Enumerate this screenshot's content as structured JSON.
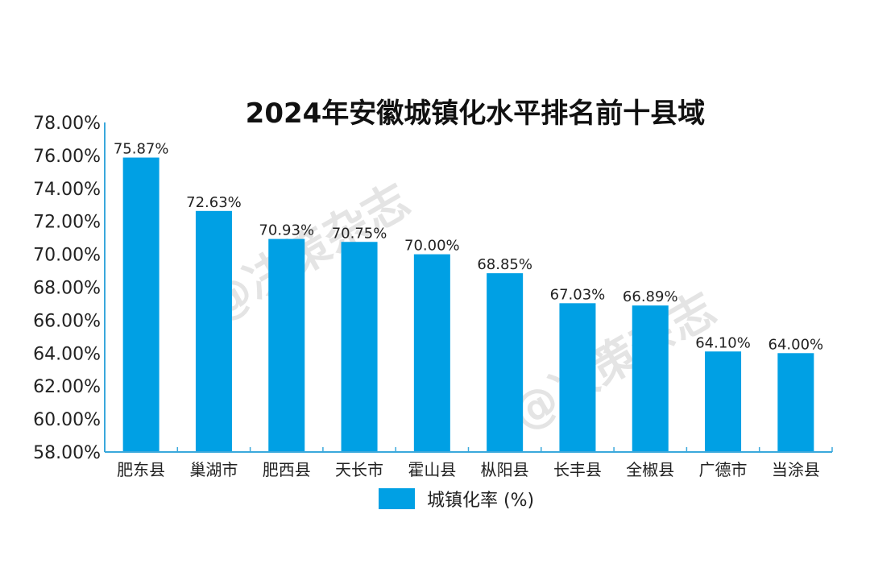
{
  "chart_data": {
    "type": "bar",
    "title": "2024年安徽城镇化水平排名前十县域",
    "categories": [
      "肥东县",
      "巢湖市",
      "肥西县",
      "天长市",
      "霍山县",
      "枞阳县",
      "长丰县",
      "全椒县",
      "广德市",
      "当涂县"
    ],
    "series": [
      {
        "name": "城镇化率 (%)",
        "values": [
          75.87,
          72.63,
          70.93,
          70.75,
          70.0,
          68.85,
          67.03,
          66.89,
          64.1,
          64.0
        ]
      }
    ],
    "data_labels": [
      "75.87%",
      "72.63%",
      "70.93%",
      "70.75%",
      "70.00%",
      "68.85%",
      "67.03%",
      "66.89%",
      "64.10%",
      "64.00%"
    ],
    "ylim": [
      58,
      78
    ],
    "yticks": [
      "58.00%",
      "60.00%",
      "62.00%",
      "64.00%",
      "66.00%",
      "68.00%",
      "70.00%",
      "72.00%",
      "74.00%",
      "76.00%",
      "78.00%"
    ],
    "grid": false,
    "legend_position": "bottom",
    "colors": {
      "bar": "#00a0e4",
      "axis": "#3aa8dc"
    },
    "watermark": "@决策杂志"
  }
}
